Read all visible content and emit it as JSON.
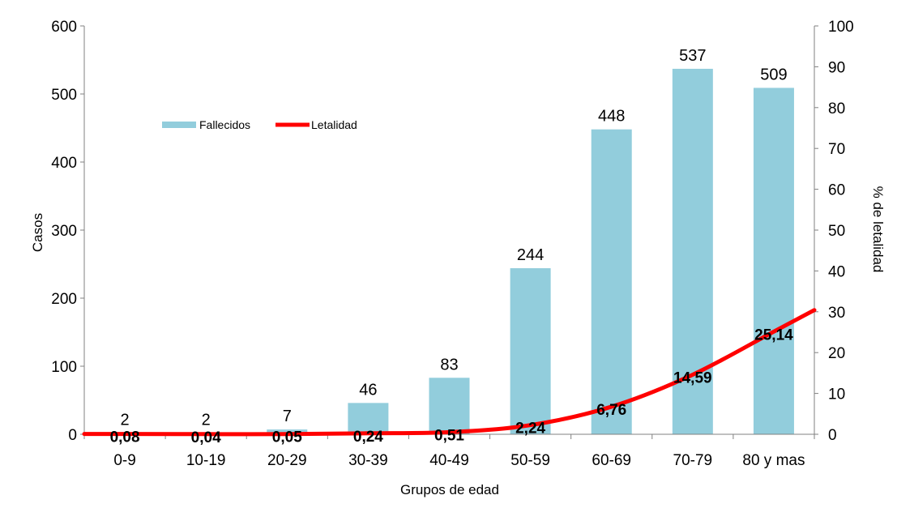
{
  "chart_data": {
    "type": "bar",
    "title": "",
    "xlabel": "Grupos de edad",
    "ylabel": "Casos",
    "y2label": "% de letalidad",
    "categories": [
      "0-9",
      "10-19",
      "20-29",
      "30-39",
      "40-49",
      "50-59",
      "60-69",
      "70-79",
      "80 y mas"
    ],
    "ylim": [
      0,
      600
    ],
    "yticks": [
      0,
      100,
      200,
      300,
      400,
      500,
      600
    ],
    "y2lim": [
      0,
      100
    ],
    "y2ticks": [
      0,
      10,
      20,
      30,
      40,
      50,
      60,
      70,
      80,
      90,
      100
    ],
    "grid": false,
    "legend_position": "top-left",
    "series": [
      {
        "name": "Fallecidos",
        "type": "bar",
        "axis": "left",
        "color": "#92CDDC",
        "values": [
          2,
          2,
          7,
          46,
          83,
          244,
          448,
          537,
          509
        ],
        "labels": [
          "2",
          "2",
          "7",
          "46",
          "83",
          "244",
          "448",
          "537",
          "509"
        ]
      },
      {
        "name": "Letalidad",
        "type": "line",
        "axis": "right",
        "color": "#FF0000",
        "values": [
          0.08,
          0.04,
          0.05,
          0.24,
          0.51,
          2.24,
          6.76,
          14.59,
          25.14
        ],
        "labels": [
          "0,08",
          "0,04",
          "0,05",
          "0,24",
          "0,51",
          "2,24",
          "6,76",
          "14,59",
          "25,14"
        ]
      }
    ]
  }
}
